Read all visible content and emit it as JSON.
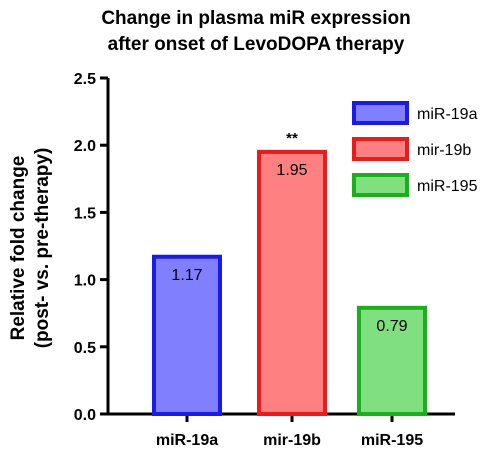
{
  "chart_data": {
    "type": "bar",
    "title_lines": [
      "Change in plasma miR expression",
      "after onset of LevoDOPA therapy"
    ],
    "ylabel_lines": [
      "Relative fold change",
      "(post- vs. pre-therapy)"
    ],
    "xlabel": "",
    "categories": [
      "miR-19a",
      "mir-19b",
      "miR-195"
    ],
    "values": [
      1.17,
      1.95,
      0.79
    ],
    "value_labels": [
      "1.17",
      "1.95",
      "0.79"
    ],
    "ylim": [
      0,
      2.5
    ],
    "yticks": [
      0.0,
      0.5,
      1.0,
      1.5,
      2.0,
      2.5
    ],
    "ytick_labels": [
      "0.0",
      "0.5",
      "1.0",
      "1.5",
      "2.0",
      "2.5"
    ],
    "significance": [
      {
        "category": "mir-19b",
        "label": "**"
      }
    ],
    "legend": {
      "placement": "right",
      "entries": [
        "miR-19a",
        "mir-19b",
        "miR-195"
      ]
    },
    "grid": false,
    "colors": {
      "fill": [
        "#8080ff",
        "#ff8080",
        "#80e080"
      ],
      "edge": [
        "#1a1aee",
        "#ee1a1a",
        "#1ab01a"
      ],
      "axis": "#000000"
    }
  }
}
